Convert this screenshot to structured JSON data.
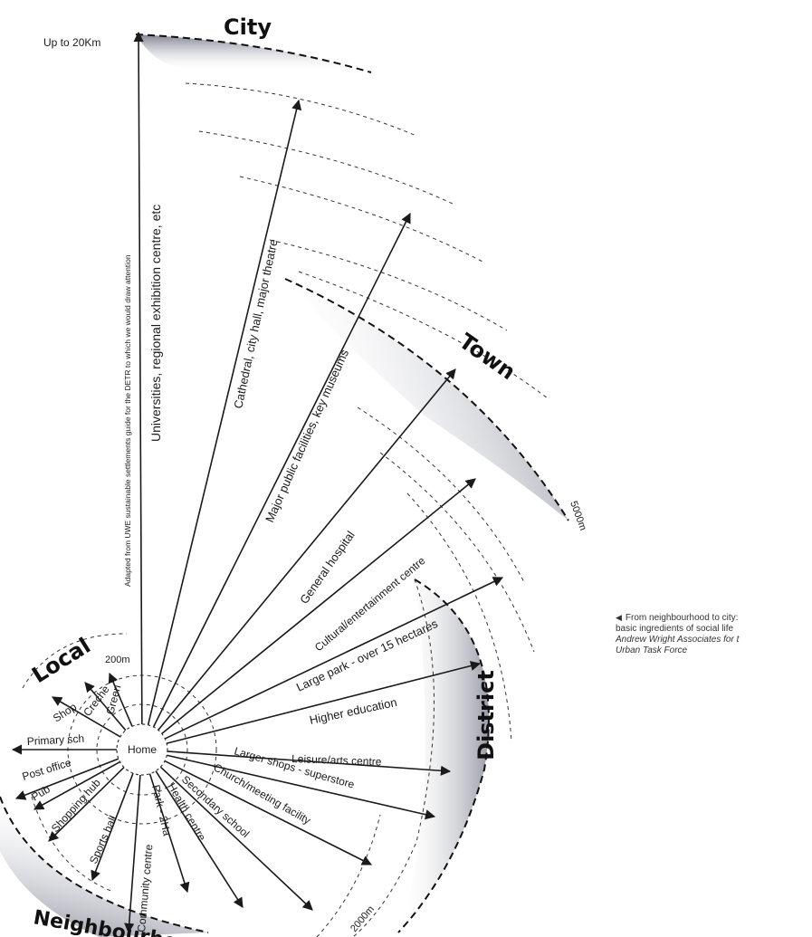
{
  "zones": {
    "city": "City",
    "town": "Town",
    "district": "District",
    "local": "Local",
    "neighbourhood": "Neighbourhood"
  },
  "distances": {
    "city": "Up to 20Km",
    "town": "5000m",
    "district": "2000m",
    "local": "200m"
  },
  "centre": "Home",
  "facilities": [
    "Green",
    "Creche",
    "Shop",
    "Primary sch",
    "Post office",
    "Pub",
    "Shopping hub",
    "Sports hall",
    "Community centre",
    "Park - 2Ha",
    "Health centre",
    "Secondary school",
    "Church/meeting facility",
    "Larger shops - superstore",
    "Leisure/arts centre",
    "Higher education",
    "Large park - over 15 hectares",
    "Cultural/entertainment centre",
    "General hospital",
    "Major public facilities, key museums",
    "Cathedral, city hall, major theatre",
    "Universities, regional exhibition centre, etc"
  ],
  "source_note": "Adapted from UWE sustainable settlements guide for the DETR to which we would draw attention",
  "caption": {
    "line1": "From neighbourhood to city:",
    "line2": "basic ingredients of social life",
    "line3": "Andrew Wright Associates for t",
    "line4": "Urban Task Force"
  }
}
